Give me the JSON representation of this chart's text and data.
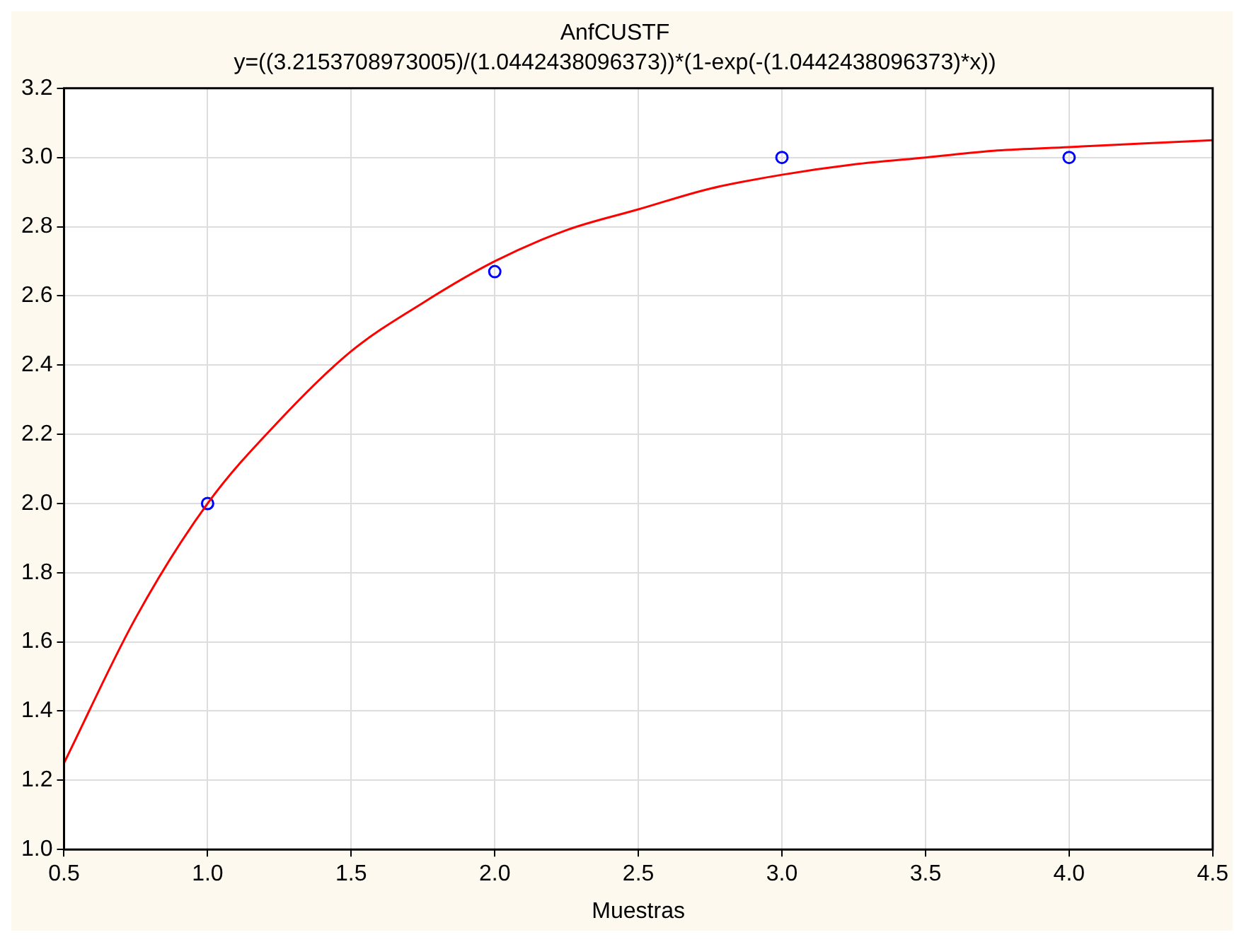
{
  "chart_data": {
    "type": "scatter",
    "title": "AnfCUSTF",
    "subtitle": "y=((3.2153708973005)/(1.0442438096373))*(1-exp(-(1.0442438096373)*x))",
    "xlabel": "Muestras",
    "xlim": [
      0.5,
      4.5
    ],
    "xticks": [
      {
        "value": 0.5,
        "label": "0.5"
      },
      {
        "value": 1,
        "label": "1.0"
      },
      {
        "value": 1.5,
        "label": "1.5"
      },
      {
        "value": 2,
        "label": "2.0"
      },
      {
        "value": 2.5,
        "label": "2.5"
      },
      {
        "value": 3,
        "label": "3.0"
      },
      {
        "value": 3.5,
        "label": "3.5"
      },
      {
        "value": 4,
        "label": "4.0"
      },
      {
        "value": 4.5,
        "label": "4.5"
      }
    ],
    "ylim": [
      1,
      3.2
    ],
    "yticks": [
      {
        "value": 1,
        "label": "1.0"
      },
      {
        "value": 1.2,
        "label": "1.2"
      },
      {
        "value": 1.4,
        "label": "1.4"
      },
      {
        "value": 1.6,
        "label": "1.6"
      },
      {
        "value": 1.8,
        "label": "1.8"
      },
      {
        "value": 2,
        "label": "2.0"
      },
      {
        "value": 2.2,
        "label": "2.2"
      },
      {
        "value": 2.4,
        "label": "2.4"
      },
      {
        "value": 2.6,
        "label": "2.6"
      },
      {
        "value": 2.8,
        "label": "2.8"
      },
      {
        "value": 3,
        "label": "3.0"
      },
      {
        "value": 3.2,
        "label": "3.2"
      }
    ],
    "grid": true,
    "legend": false,
    "series": [
      {
        "type": "line",
        "color": "#ff0000",
        "marker": "none",
        "x": [
          0.5,
          0.75,
          1,
          1.25,
          1.5,
          1.75,
          2,
          2.25,
          2.5,
          2.75,
          3,
          3.25,
          3.5,
          3.75,
          4,
          4.25,
          4.5
        ],
        "values": [
          1.25,
          1.67,
          2.0,
          2.24,
          2.44,
          2.58,
          2.7,
          2.79,
          2.85,
          2.91,
          2.95,
          2.98,
          3.0,
          3.02,
          3.03,
          3.04,
          3.05
        ]
      },
      {
        "color": "#0000ff",
        "marker": "circle",
        "x": [
          1,
          2,
          3,
          4
        ],
        "values": [
          2.0,
          2.67,
          3.0,
          3.0
        ]
      }
    ]
  }
}
